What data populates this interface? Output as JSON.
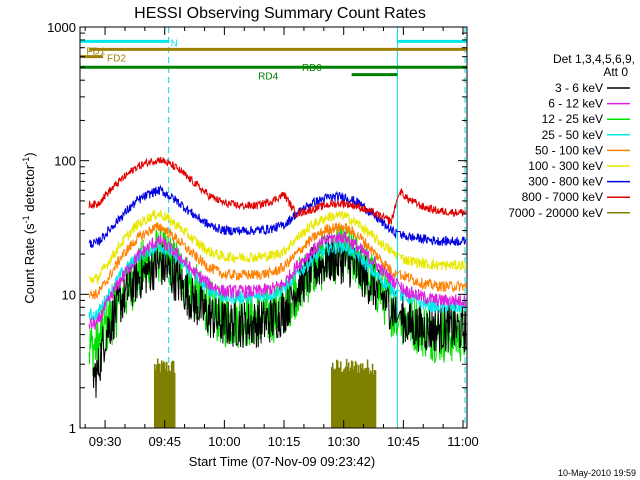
{
  "chart_data": {
    "type": "line",
    "title": "HESSI Observing Summary Count Rates",
    "xlabel": "Start Time (07-Nov-09 09:23:42)",
    "ylabel": "Count Rate (s",
    "ylabel_sup1": "-1",
    "ylabel_mid": " detector",
    "ylabel_sup2": "-1",
    "ylabel_end": ")",
    "y_scale": "log",
    "ylim": [
      1,
      1000
    ],
    "x_range_min": [
      23.7,
      121
    ],
    "x_ticks": [
      {
        "min": 30,
        "label": "09:30"
      },
      {
        "min": 45,
        "label": "09:45"
      },
      {
        "min": 60,
        "label": "10:00"
      },
      {
        "min": 75,
        "label": "10:15"
      },
      {
        "min": 90,
        "label": "10:30"
      },
      {
        "min": 105,
        "label": "10:45"
      },
      {
        "min": 120,
        "label": "11:00"
      }
    ],
    "y_ticks": [
      {
        "value": 1,
        "label": "1"
      },
      {
        "value": 10,
        "label": "10"
      },
      {
        "value": 100,
        "label": "100"
      },
      {
        "value": 1000,
        "label": "1000"
      }
    ],
    "legend": {
      "position": "right",
      "header_line1": "Det 1,3,4,5,6,9,",
      "header_line2": "Att 0"
    },
    "series": [
      {
        "name": "3 - 6 keV",
        "color": "#000000",
        "x": [
          28,
          30,
          34,
          38,
          42,
          44,
          48,
          52,
          56,
          60,
          64,
          68,
          72,
          75,
          78,
          82,
          86,
          90,
          94,
          98,
          102,
          104,
          106,
          110,
          114,
          118,
          120
        ],
        "y": [
          2.5,
          5,
          9,
          13,
          16,
          17,
          13,
          9,
          7,
          6,
          6,
          6,
          6.5,
          7.5,
          11,
          15,
          18,
          18,
          15,
          11,
          8,
          7,
          6,
          5.5,
          5.5,
          5.5,
          5.5
        ]
      },
      {
        "name": "6 - 12 keV",
        "color": "#e020e0",
        "x": [
          28,
          30,
          34,
          38,
          42,
          44,
          48,
          52,
          56,
          60,
          64,
          68,
          72,
          75,
          78,
          82,
          86,
          90,
          94,
          98,
          102,
          104,
          106,
          110,
          114,
          118,
          120
        ],
        "y": [
          6,
          8,
          13,
          19,
          24,
          25,
          20,
          15,
          12,
          10.5,
          10.5,
          10.5,
          11,
          12,
          16,
          21,
          26,
          27,
          22,
          17,
          13,
          11.5,
          10.5,
          9.5,
          9,
          9,
          9
        ]
      },
      {
        "name": "12 - 25 keV",
        "color": "#00e000",
        "x": [
          28,
          30,
          34,
          38,
          42,
          44,
          48,
          52,
          56,
          60,
          64,
          68,
          72,
          75,
          78,
          82,
          86,
          90,
          94,
          98,
          102,
          104,
          106,
          110,
          114,
          118,
          120
        ],
        "y": [
          4,
          5.5,
          9,
          14,
          19,
          20,
          16,
          11,
          8,
          6.5,
          6.5,
          6.5,
          7,
          8,
          11,
          15,
          19,
          20,
          17,
          12,
          8,
          7,
          6.5,
          5.5,
          5,
          5,
          5
        ]
      },
      {
        "name": "25 - 50 keV",
        "color": "#00e8e8",
        "x": [
          28,
          30,
          34,
          38,
          42,
          44,
          48,
          52,
          56,
          60,
          64,
          68,
          72,
          75,
          78,
          82,
          86,
          90,
          94,
          98,
          102,
          104,
          106,
          110,
          114,
          118,
          120
        ],
        "y": [
          7,
          9,
          14,
          19,
          22,
          23,
          19,
          14,
          11,
          9.5,
          9.5,
          9.5,
          10,
          11,
          14,
          18,
          22,
          23,
          19,
          14,
          11,
          10,
          9.5,
          8.5,
          8,
          8,
          8
        ]
      },
      {
        "name": "50 - 100 keV",
        "color": "#ff8000",
        "x": [
          28,
          30,
          34,
          38,
          42,
          44,
          48,
          52,
          56,
          60,
          64,
          68,
          72,
          75,
          78,
          82,
          86,
          90,
          94,
          98,
          102,
          104,
          106,
          110,
          114,
          118,
          120
        ],
        "y": [
          10,
          12,
          19,
          26,
          31,
          32,
          26,
          20,
          16,
          14,
          14,
          14,
          14.5,
          16,
          20,
          26,
          31,
          32,
          27,
          20,
          15,
          14,
          13.5,
          12,
          11.5,
          11.5,
          11.5
        ]
      },
      {
        "name": "100 - 300 keV",
        "color": "#e8e800",
        "x": [
          28,
          30,
          34,
          38,
          42,
          44,
          48,
          52,
          56,
          60,
          64,
          68,
          72,
          75,
          78,
          82,
          86,
          90,
          94,
          98,
          102,
          104,
          106,
          110,
          114,
          118,
          120
        ],
        "y": [
          13,
          16,
          24,
          33,
          39,
          40,
          33,
          26,
          21,
          19,
          19,
          19,
          19.5,
          21,
          26,
          33,
          38,
          39,
          33,
          26,
          21,
          19,
          18,
          17,
          16.5,
          16.5,
          16.5
        ]
      },
      {
        "name": "300 - 800 keV",
        "color": "#0000e0",
        "x": [
          28,
          30,
          34,
          38,
          42,
          44,
          48,
          52,
          56,
          60,
          64,
          68,
          72,
          75,
          78,
          82,
          86,
          90,
          94,
          98,
          102,
          104,
          106,
          110,
          114,
          118,
          120
        ],
        "y": [
          24,
          28,
          38,
          50,
          58,
          60,
          50,
          40,
          33,
          30,
          30,
          30,
          31,
          33,
          40,
          48,
          53,
          54,
          48,
          38,
          30,
          28,
          27,
          26,
          25,
          25,
          25
        ]
      },
      {
        "name": "800 - 7000 keV",
        "color": "#e00000",
        "x": [
          28,
          30,
          34,
          38,
          42,
          44,
          48,
          52,
          56,
          60,
          64,
          68,
          72,
          75,
          78,
          82,
          86,
          90,
          94,
          98,
          102,
          104,
          106,
          110,
          114,
          118,
          120
        ],
        "y": [
          47,
          55,
          72,
          90,
          100,
          102,
          88,
          70,
          55,
          48,
          46,
          46,
          50,
          56,
          40,
          43,
          47,
          48,
          45,
          40,
          35,
          60,
          52,
          45,
          42,
          41,
          41
        ]
      },
      {
        "name": "7000 - 20000 keV",
        "color": "#808000",
        "x": [],
        "y": []
      }
    ],
    "bursts_7000_20000": [
      [
        42.5,
        47.5
      ],
      [
        87,
        98
      ]
    ],
    "flag_bars": [
      {
        "label": "N",
        "color": "#00e8e8",
        "y": 780,
        "segments": [
          [
            23.7,
            46
          ],
          [
            103.5,
            121
          ]
        ],
        "label_at": 46.5
      },
      {
        "label": "FD1",
        "color": "#a08000",
        "y": 680,
        "segments": [
          [
            26,
            121
          ]
        ],
        "label_at": 25.3
      },
      {
        "label": "FD2",
        "color": "#a08000",
        "y": 600,
        "segments": [
          [
            23.7,
            29.5
          ]
        ],
        "label_at": 30.5
      },
      {
        "label": "RD0",
        "color": "#008000",
        "y": 500,
        "segments": [
          [
            23.7,
            103.5
          ],
          [
            103.5,
            121
          ]
        ],
        "label_at": 79.5
      },
      {
        "label": "RD4",
        "color": "#008000",
        "y": 440,
        "segments": [
          [
            92,
            103.5
          ]
        ],
        "label_at": 68.5
      }
    ],
    "vlines": [
      {
        "min": 46,
        "color": "#00d8d8",
        "style": "dashed"
      },
      {
        "min": 103.5,
        "color": "#00d8d8",
        "style": "solid"
      },
      {
        "min": 120.5,
        "color": "#00d8d8",
        "style": "dashed"
      }
    ],
    "footer_date": "10-May-2010 19:59"
  }
}
